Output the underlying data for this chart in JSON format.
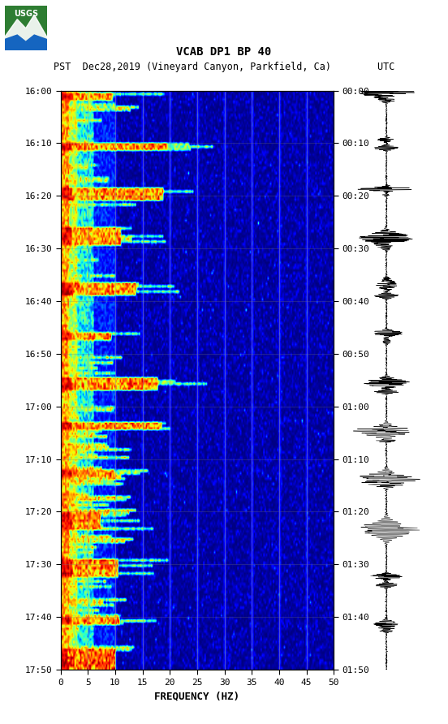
{
  "title_line1": "VCAB DP1 BP 40",
  "title_line2_pst": "PST",
  "title_line2_date": "  Dec28,2019 (Vineyard Canyon, Parkfield, Ca)",
  "title_line2_utc": "UTC",
  "xlabel": "FREQUENCY (HZ)",
  "freq_min": 0,
  "freq_max": 50,
  "freq_ticks": [
    0,
    5,
    10,
    15,
    20,
    25,
    30,
    35,
    40,
    45,
    50
  ],
  "pst_labels": [
    "16:00",
    "16:10",
    "16:20",
    "16:30",
    "16:40",
    "16:50",
    "17:00",
    "17:10",
    "17:20",
    "17:30",
    "17:40",
    "17:50"
  ],
  "utc_labels": [
    "00:00",
    "00:10",
    "00:20",
    "00:30",
    "00:40",
    "00:50",
    "01:00",
    "01:10",
    "01:20",
    "01:30",
    "01:40",
    "01:50"
  ],
  "bg_color": "#ffffff",
  "usgs_green": "#2e7d32",
  "tick_fontsize": 8,
  "label_fontsize": 9
}
